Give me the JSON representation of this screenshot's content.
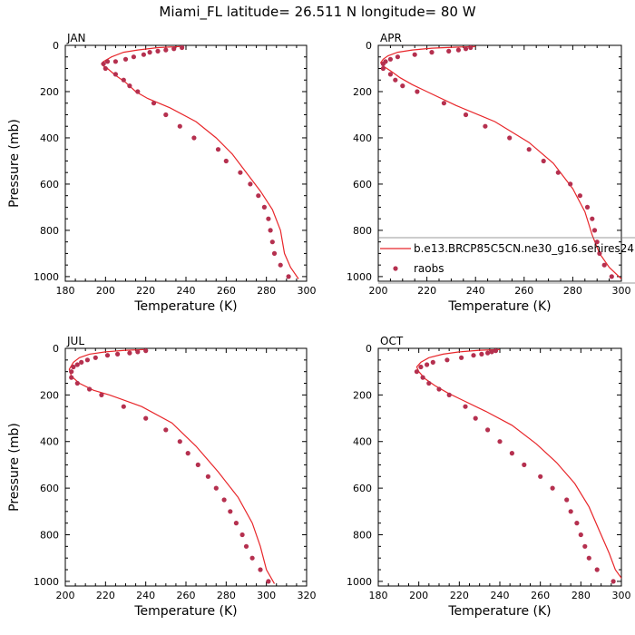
{
  "chart_data": {
    "title": "Miami_FL  latitude= 26.511 N longitude= 80 W",
    "type": "line",
    "colors": {
      "model": "#e8262a",
      "obs": "#b5304f"
    },
    "legend": {
      "placement": "inside APR panel, lower portion",
      "entries": [
        {
          "label": "b.e13.BRCP85C5CN.ne30_g16.sehires24",
          "marker": "line"
        },
        {
          "label": "raobs",
          "marker": "dot"
        }
      ]
    },
    "panels": [
      {
        "label": "JAN",
        "xlabel": "Temperature (K)",
        "ylabel": "Pressure (mb)",
        "xlim": [
          180,
          300
        ],
        "ylim": [
          0,
          1020
        ],
        "xticks": [
          180,
          200,
          220,
          240,
          260,
          280,
          300
        ],
        "yticks": [
          0,
          200,
          400,
          600,
          800,
          1000
        ],
        "model": {
          "name": "b.e13.BRCP85C5CN.ne30_g16.sehires24",
          "points": [
            [
              237,
              5
            ],
            [
              226,
              10
            ],
            [
              216,
              20
            ],
            [
              209,
              30
            ],
            [
              203,
              50
            ],
            [
              199,
              70
            ],
            [
              198,
              80
            ],
            [
              199,
              90
            ],
            [
              201,
              100
            ],
            [
              205,
              130
            ],
            [
              210,
              160
            ],
            [
              215,
              200
            ],
            [
              221,
              230
            ],
            [
              232,
              270
            ],
            [
              245,
              330
            ],
            [
              255,
              400
            ],
            [
              263,
              470
            ],
            [
              270,
              550
            ],
            [
              277,
              630
            ],
            [
              283,
              710
            ],
            [
              287,
              800
            ],
            [
              289,
              900
            ],
            [
              292,
              960
            ],
            [
              296,
              1010
            ]
          ]
        },
        "obs": {
          "name": "raobs",
          "points": [
            [
              238,
              10
            ],
            [
              234,
              15
            ],
            [
              230,
              20
            ],
            [
              226,
              25
            ],
            [
              222,
              30
            ],
            [
              219,
              40
            ],
            [
              214,
              50
            ],
            [
              210,
              60
            ],
            [
              205,
              70
            ],
            [
              201,
              70
            ],
            [
              199,
              80
            ],
            [
              200,
              100
            ],
            [
              205,
              125
            ],
            [
              209,
              150
            ],
            [
              212,
              175
            ],
            [
              216,
              200
            ],
            [
              224,
              250
            ],
            [
              230,
              300
            ],
            [
              237,
              350
            ],
            [
              244,
              400
            ],
            [
              256,
              450
            ],
            [
              260,
              500
            ],
            [
              267,
              550
            ],
            [
              272,
              600
            ],
            [
              276,
              650
            ],
            [
              279,
              700
            ],
            [
              281,
              750
            ],
            [
              282,
              800
            ],
            [
              283,
              850
            ],
            [
              284,
              900
            ],
            [
              287,
              950
            ],
            [
              291,
              1000
            ]
          ]
        }
      },
      {
        "label": "APR",
        "xlabel": "Temperature (K)",
        "ylabel": "",
        "xlim": [
          200,
          300
        ],
        "ylim": [
          0,
          1020
        ],
        "xticks": [
          200,
          220,
          240,
          260,
          280,
          300
        ],
        "yticks": [
          0,
          200,
          400,
          600,
          800,
          1000
        ],
        "model": {
          "name": "b.e13.BRCP85C5CN.ne30_g16.sehires24",
          "points": [
            [
              240,
              5
            ],
            [
              232,
              8
            ],
            [
              222,
              12
            ],
            [
              214,
              20
            ],
            [
              208,
              30
            ],
            [
              204,
              45
            ],
            [
              202,
              60
            ],
            [
              201,
              75
            ],
            [
              202,
              90
            ],
            [
              205,
              110
            ],
            [
              209,
              140
            ],
            [
              214,
              170
            ],
            [
              220,
              200
            ],
            [
              232,
              260
            ],
            [
              248,
              330
            ],
            [
              262,
              420
            ],
            [
              272,
              510
            ],
            [
              280,
              620
            ],
            [
              285,
              720
            ],
            [
              288,
              820
            ],
            [
              291,
              900
            ],
            [
              295,
              960
            ],
            [
              300,
              1010
            ]
          ]
        },
        "obs": {
          "name": "raobs",
          "points": [
            [
              238,
              10
            ],
            [
              236,
              15
            ],
            [
              233,
              20
            ],
            [
              229,
              25
            ],
            [
              222,
              30
            ],
            [
              215,
              40
            ],
            [
              208,
              50
            ],
            [
              205,
              60
            ],
            [
              203,
              70
            ],
            [
              202,
              80
            ],
            [
              202,
              100
            ],
            [
              205,
              125
            ],
            [
              207,
              150
            ],
            [
              210,
              175
            ],
            [
              216,
              200
            ],
            [
              227,
              250
            ],
            [
              236,
              300
            ],
            [
              244,
              350
            ],
            [
              254,
              400
            ],
            [
              262,
              450
            ],
            [
              268,
              500
            ],
            [
              274,
              550
            ],
            [
              279,
              600
            ],
            [
              283,
              650
            ],
            [
              286,
              700
            ],
            [
              288,
              750
            ],
            [
              289,
              800
            ],
            [
              290,
              850
            ],
            [
              291,
              900
            ],
            [
              293,
              950
            ],
            [
              296,
              1000
            ]
          ]
        }
      },
      {
        "label": "JUL",
        "xlabel": "Temperature (K)",
        "ylabel": "Pressure (mb)",
        "xlim": [
          200,
          320
        ],
        "ylim": [
          0,
          1020
        ],
        "xticks": [
          200,
          220,
          240,
          260,
          280,
          300,
          320
        ],
        "yticks": [
          0,
          200,
          400,
          600,
          800,
          1000
        ],
        "model": {
          "name": "b.e13.BRCP85C5CN.ne30_g16.sehires24",
          "points": [
            [
              240,
              5
            ],
            [
              230,
              8
            ],
            [
              220,
              15
            ],
            [
              212,
              25
            ],
            [
              207,
              40
            ],
            [
              204,
              60
            ],
            [
              202,
              90
            ],
            [
              203,
              120
            ],
            [
              207,
              150
            ],
            [
              214,
              180
            ],
            [
              222,
              200
            ],
            [
              238,
              250
            ],
            [
              253,
              320
            ],
            [
              265,
              420
            ],
            [
              276,
              530
            ],
            [
              286,
              640
            ],
            [
              293,
              750
            ],
            [
              297,
              850
            ],
            [
              300,
              950
            ],
            [
              304,
              1010
            ]
          ]
        },
        "obs": {
          "name": "raobs",
          "points": [
            [
              240,
              10
            ],
            [
              236,
              15
            ],
            [
              232,
              20
            ],
            [
              226,
              25
            ],
            [
              221,
              30
            ],
            [
              215,
              40
            ],
            [
              211,
              50
            ],
            [
              208,
              60
            ],
            [
              206,
              70
            ],
            [
              204,
              80
            ],
            [
              203,
              100
            ],
            [
              203,
              125
            ],
            [
              206,
              150
            ],
            [
              212,
              175
            ],
            [
              218,
              200
            ],
            [
              229,
              250
            ],
            [
              240,
              300
            ],
            [
              250,
              350
            ],
            [
              257,
              400
            ],
            [
              261,
              450
            ],
            [
              266,
              500
            ],
            [
              271,
              550
            ],
            [
              275,
              600
            ],
            [
              279,
              650
            ],
            [
              282,
              700
            ],
            [
              285,
              750
            ],
            [
              288,
              800
            ],
            [
              290,
              850
            ],
            [
              293,
              900
            ],
            [
              297,
              950
            ],
            [
              301,
              1000
            ]
          ]
        }
      },
      {
        "label": "OCT",
        "xlabel": "Temperature (K)",
        "ylabel": "",
        "xlim": [
          180,
          300
        ],
        "ylim": [
          0,
          1020
        ],
        "xticks": [
          180,
          200,
          220,
          240,
          260,
          280,
          300
        ],
        "yticks": [
          0,
          200,
          400,
          600,
          800,
          1000
        ],
        "model": {
          "name": "b.e13.BRCP85C5CN.ne30_g16.sehires24",
          "points": [
            [
              240,
              5
            ],
            [
              230,
              8
            ],
            [
              220,
              15
            ],
            [
              212,
              25
            ],
            [
              205,
              40
            ],
            [
              201,
              60
            ],
            [
              199,
              80
            ],
            [
              200,
              100
            ],
            [
              203,
              130
            ],
            [
              208,
              160
            ],
            [
              214,
              190
            ],
            [
              221,
              220
            ],
            [
              233,
              270
            ],
            [
              246,
              330
            ],
            [
              258,
              410
            ],
            [
              268,
              490
            ],
            [
              277,
              580
            ],
            [
              284,
              680
            ],
            [
              289,
              780
            ],
            [
              294,
              880
            ],
            [
              297,
              950
            ],
            [
              302,
              1010
            ]
          ]
        },
        "obs": {
          "name": "raobs",
          "points": [
            [
              238,
              10
            ],
            [
              236,
              15
            ],
            [
              234,
              20
            ],
            [
              231,
              25
            ],
            [
              227,
              30
            ],
            [
              221,
              40
            ],
            [
              214,
              50
            ],
            [
              207,
              60
            ],
            [
              204,
              70
            ],
            [
              201,
              80
            ],
            [
              199,
              100
            ],
            [
              202,
              125
            ],
            [
              205,
              150
            ],
            [
              210,
              175
            ],
            [
              215,
              200
            ],
            [
              223,
              250
            ],
            [
              228,
              300
            ],
            [
              234,
              350
            ],
            [
              240,
              400
            ],
            [
              246,
              450
            ],
            [
              252,
              500
            ],
            [
              260,
              550
            ],
            [
              266,
              600
            ],
            [
              273,
              650
            ],
            [
              275,
              700
            ],
            [
              278,
              750
            ],
            [
              280,
              800
            ],
            [
              282,
              850
            ],
            [
              284,
              900
            ],
            [
              288,
              950
            ],
            [
              296,
              1000
            ]
          ]
        }
      }
    ]
  }
}
